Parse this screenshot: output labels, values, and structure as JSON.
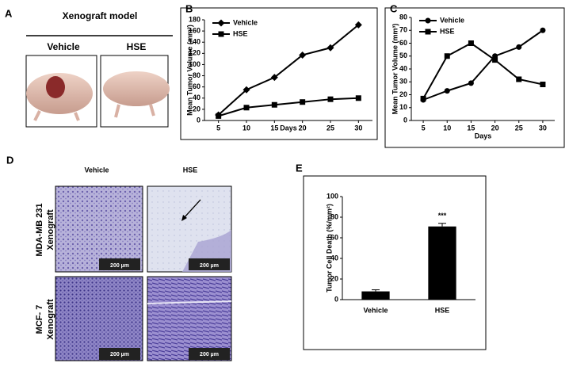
{
  "panel_labels": [
    "A",
    "B",
    "C",
    "D",
    "E"
  ],
  "panel_a": {
    "title": "Xenograft model",
    "columns": [
      "Vehicle",
      "HSE"
    ]
  },
  "panel_d": {
    "columns": [
      "Vehicle",
      "HSE"
    ],
    "rows": [
      [
        "MDA-MB 231",
        "Xenograft"
      ],
      [
        "MCF- 7",
        "Xenograft"
      ]
    ],
    "scale_bars": [
      "200 µm",
      "200 µm",
      "200 µm",
      "200 µm"
    ]
  },
  "chart_data": [
    {
      "type": "line",
      "xlabel": "Days",
      "ylabel": "Mean Tumor Volume (mm³)",
      "x": [
        5,
        10,
        15,
        20,
        25,
        30
      ],
      "xlim": [
        2.5,
        32.5
      ],
      "xticks": [
        5,
        10,
        15,
        20,
        25,
        30
      ],
      "ylim": [
        0,
        180
      ],
      "yticks": [
        0,
        20,
        40,
        60,
        80,
        100,
        120,
        140,
        160,
        180
      ],
      "legend": "upper left",
      "series": [
        {
          "name": "Vehicle",
          "color": "#000000",
          "marker": "diamond",
          "values": [
            10,
            55,
            77,
            117,
            130,
            171
          ]
        },
        {
          "name": "HSE",
          "color": "#000000",
          "marker": "square",
          "values": [
            8,
            23,
            28,
            33,
            38,
            40
          ]
        }
      ]
    },
    {
      "type": "line",
      "xlabel": "Days",
      "ylabel": "Mean Tumor Volume (mm³)",
      "x": [
        5,
        10,
        15,
        20,
        25,
        30
      ],
      "xlim": [
        2.5,
        32.5
      ],
      "xticks": [
        5,
        10,
        15,
        20,
        25,
        30
      ],
      "ylim": [
        0,
        80
      ],
      "yticks": [
        0,
        10,
        20,
        30,
        40,
        50,
        60,
        70,
        80
      ],
      "legend": "upper left",
      "series": [
        {
          "name": "Vehicle",
          "color": "#000000",
          "marker": "circle",
          "values": [
            16,
            23,
            29,
            50,
            57,
            70
          ]
        },
        {
          "name": "HSE",
          "color": "#000000",
          "marker": "square",
          "values": [
            17,
            50,
            60,
            47,
            32,
            28
          ]
        }
      ]
    },
    {
      "type": "bar",
      "ylabel": "Tumor Cell Death (%/mm²)",
      "categories": [
        "Vehicle",
        "HSE"
      ],
      "values": [
        8,
        71
      ],
      "errors": [
        1.5,
        3
      ],
      "color": "#000000",
      "ylim": [
        0,
        100
      ],
      "yticks": [
        0,
        20,
        40,
        60,
        80,
        100
      ],
      "annotations": [
        "",
        "***"
      ]
    }
  ]
}
